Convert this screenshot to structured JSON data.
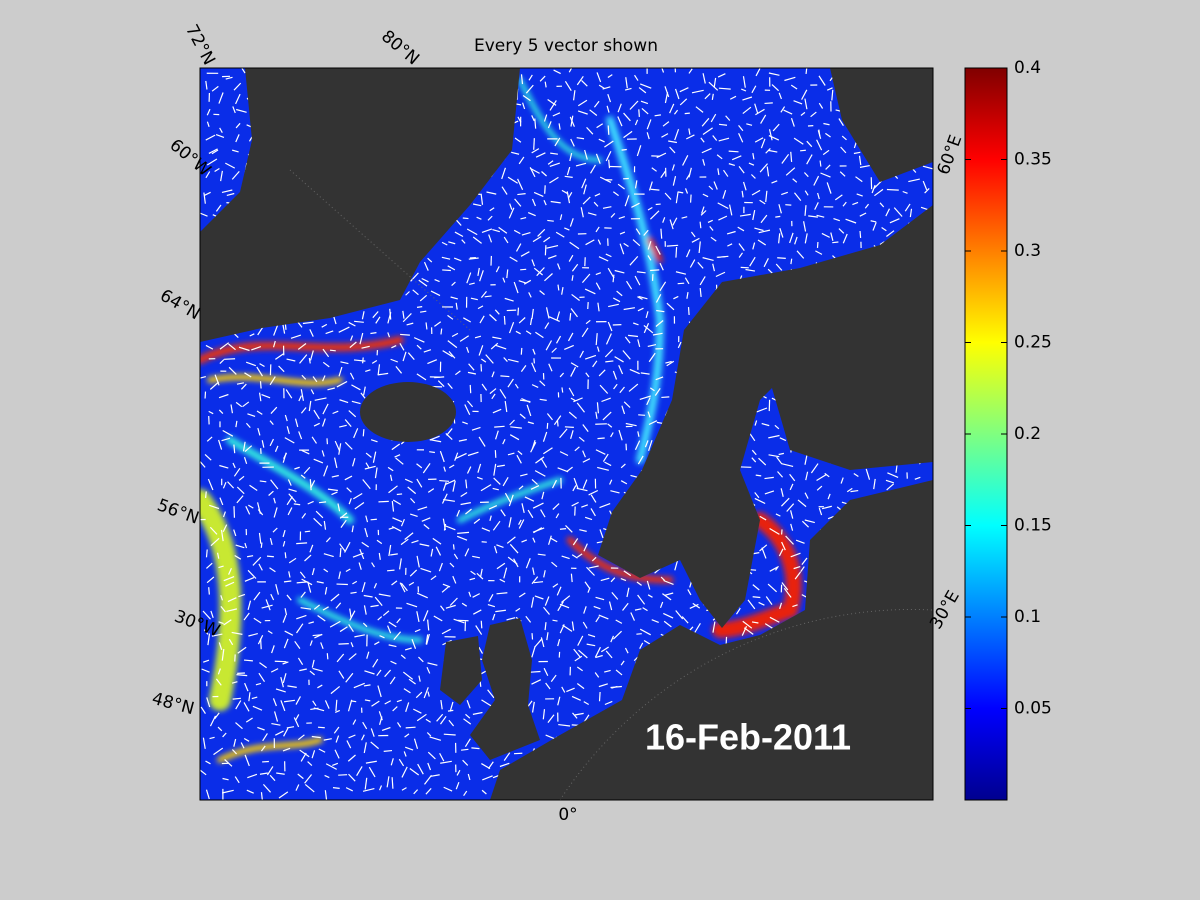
{
  "title": "Every 5 vector shown",
  "date": "16-Feb-2011",
  "map_labels": {
    "lat_72": "72°N",
    "lat_80": "80°N",
    "lon_60w": "60°W",
    "lat_64": "64°N",
    "lat_56": "56°N",
    "lon_30w": "30°W",
    "lat_48": "48°N",
    "lon_0": "0°",
    "lon_60e": "60°E",
    "lon_30e": "30°E"
  },
  "colorbar": {
    "lim": [
      0,
      0.4
    ],
    "ticks": [
      0.05,
      0.1,
      0.15,
      0.2,
      0.25,
      0.3,
      0.35,
      0.4
    ]
  }
}
